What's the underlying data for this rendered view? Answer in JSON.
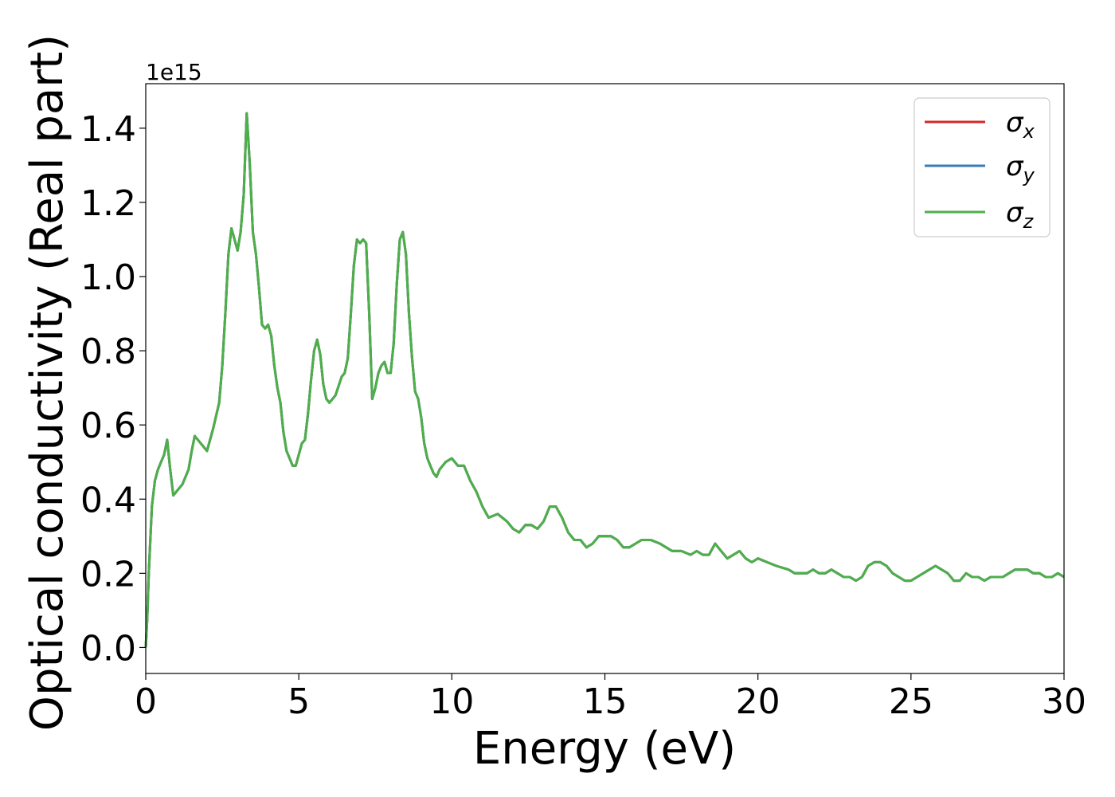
{
  "chart_data": {
    "type": "line",
    "xlabel": "Energy (eV)",
    "ylabel": "Optical conductivity (Real part)",
    "y_multiplier_label": "1e15",
    "xlim": [
      0,
      30
    ],
    "ylim": [
      -0.07,
      1.52
    ],
    "x_ticks": [
      0,
      5,
      10,
      15,
      20,
      25,
      30
    ],
    "y_ticks": [
      0.0,
      0.2,
      0.4,
      0.6,
      0.8,
      1.0,
      1.2,
      1.4
    ],
    "grid": false,
    "legend_position": "top-right",
    "series": [
      {
        "name": "σx",
        "sym": "σ",
        "sub": "x",
        "color": "#d62728"
      },
      {
        "name": "σy",
        "sym": "σ",
        "sub": "y",
        "color": "#377eb8"
      },
      {
        "name": "σz",
        "sym": "σ",
        "sub": "z",
        "color": "#4daf4a"
      }
    ],
    "x": [
      0.0,
      0.05,
      0.1,
      0.2,
      0.3,
      0.4,
      0.5,
      0.6,
      0.7,
      0.8,
      0.9,
      1.0,
      1.2,
      1.4,
      1.5,
      1.6,
      1.8,
      2.0,
      2.2,
      2.4,
      2.5,
      2.6,
      2.7,
      2.8,
      2.9,
      3.0,
      3.1,
      3.2,
      3.3,
      3.4,
      3.5,
      3.6,
      3.7,
      3.8,
      3.9,
      4.0,
      4.1,
      4.2,
      4.3,
      4.4,
      4.5,
      4.6,
      4.8,
      4.9,
      5.0,
      5.1,
      5.2,
      5.3,
      5.4,
      5.5,
      5.6,
      5.7,
      5.8,
      5.9,
      6.0,
      6.2,
      6.4,
      6.5,
      6.6,
      6.7,
      6.8,
      6.9,
      7.0,
      7.1,
      7.2,
      7.3,
      7.4,
      7.5,
      7.6,
      7.7,
      7.8,
      7.9,
      8.0,
      8.1,
      8.2,
      8.3,
      8.4,
      8.5,
      8.6,
      8.7,
      8.8,
      8.9,
      9.0,
      9.1,
      9.2,
      9.3,
      9.4,
      9.5,
      9.6,
      9.8,
      10.0,
      10.2,
      10.4,
      10.6,
      10.8,
      11.0,
      11.2,
      11.5,
      11.8,
      12.0,
      12.2,
      12.4,
      12.6,
      12.8,
      13.0,
      13.2,
      13.4,
      13.6,
      13.8,
      14.0,
      14.2,
      14.4,
      14.6,
      14.8,
      15.0,
      15.2,
      15.4,
      15.6,
      15.8,
      16.0,
      16.2,
      16.5,
      16.8,
      17.0,
      17.2,
      17.5,
      17.8,
      18.0,
      18.2,
      18.4,
      18.6,
      18.8,
      19.0,
      19.2,
      19.4,
      19.6,
      19.8,
      20.0,
      20.3,
      20.6,
      21.0,
      21.2,
      21.4,
      21.6,
      21.8,
      22.0,
      22.2,
      22.4,
      22.6,
      22.8,
      23.0,
      23.2,
      23.4,
      23.6,
      23.8,
      24.0,
      24.2,
      24.4,
      24.6,
      24.8,
      25.0,
      25.2,
      25.4,
      25.6,
      25.8,
      26.0,
      26.2,
      26.4,
      26.6,
      26.8,
      27.0,
      27.2,
      27.4,
      27.6,
      27.8,
      28.0,
      28.2,
      28.4,
      28.6,
      28.8,
      29.0,
      29.2,
      29.4,
      29.6,
      29.8,
      30.0
    ],
    "y": [
      0.0,
      0.08,
      0.2,
      0.38,
      0.45,
      0.48,
      0.5,
      0.52,
      0.56,
      0.48,
      0.41,
      0.42,
      0.44,
      0.48,
      0.53,
      0.57,
      0.55,
      0.53,
      0.59,
      0.66,
      0.76,
      0.9,
      1.06,
      1.13,
      1.1,
      1.07,
      1.12,
      1.22,
      1.44,
      1.3,
      1.12,
      1.06,
      0.97,
      0.87,
      0.86,
      0.87,
      0.84,
      0.76,
      0.7,
      0.66,
      0.58,
      0.53,
      0.49,
      0.49,
      0.52,
      0.55,
      0.56,
      0.63,
      0.72,
      0.8,
      0.83,
      0.79,
      0.71,
      0.67,
      0.66,
      0.68,
      0.73,
      0.74,
      0.78,
      0.9,
      1.03,
      1.1,
      1.09,
      1.1,
      1.09,
      0.9,
      0.67,
      0.7,
      0.74,
      0.76,
      0.77,
      0.74,
      0.74,
      0.82,
      0.98,
      1.1,
      1.12,
      1.06,
      0.9,
      0.78,
      0.69,
      0.67,
      0.62,
      0.55,
      0.51,
      0.49,
      0.47,
      0.46,
      0.48,
      0.5,
      0.51,
      0.49,
      0.49,
      0.45,
      0.42,
      0.38,
      0.35,
      0.36,
      0.34,
      0.32,
      0.31,
      0.33,
      0.33,
      0.32,
      0.34,
      0.38,
      0.38,
      0.35,
      0.31,
      0.29,
      0.29,
      0.27,
      0.28,
      0.3,
      0.3,
      0.3,
      0.29,
      0.27,
      0.27,
      0.28,
      0.29,
      0.29,
      0.28,
      0.27,
      0.26,
      0.26,
      0.25,
      0.26,
      0.25,
      0.25,
      0.28,
      0.26,
      0.24,
      0.25,
      0.26,
      0.24,
      0.23,
      0.24,
      0.23,
      0.22,
      0.21,
      0.2,
      0.2,
      0.2,
      0.21,
      0.2,
      0.2,
      0.21,
      0.2,
      0.19,
      0.19,
      0.18,
      0.19,
      0.22,
      0.23,
      0.23,
      0.22,
      0.2,
      0.19,
      0.18,
      0.18,
      0.19,
      0.2,
      0.21,
      0.22,
      0.21,
      0.2,
      0.18,
      0.18,
      0.2,
      0.19,
      0.19,
      0.18,
      0.19,
      0.19,
      0.19,
      0.2,
      0.21,
      0.21,
      0.21,
      0.2,
      0.2,
      0.19,
      0.19,
      0.2,
      0.19
    ]
  }
}
